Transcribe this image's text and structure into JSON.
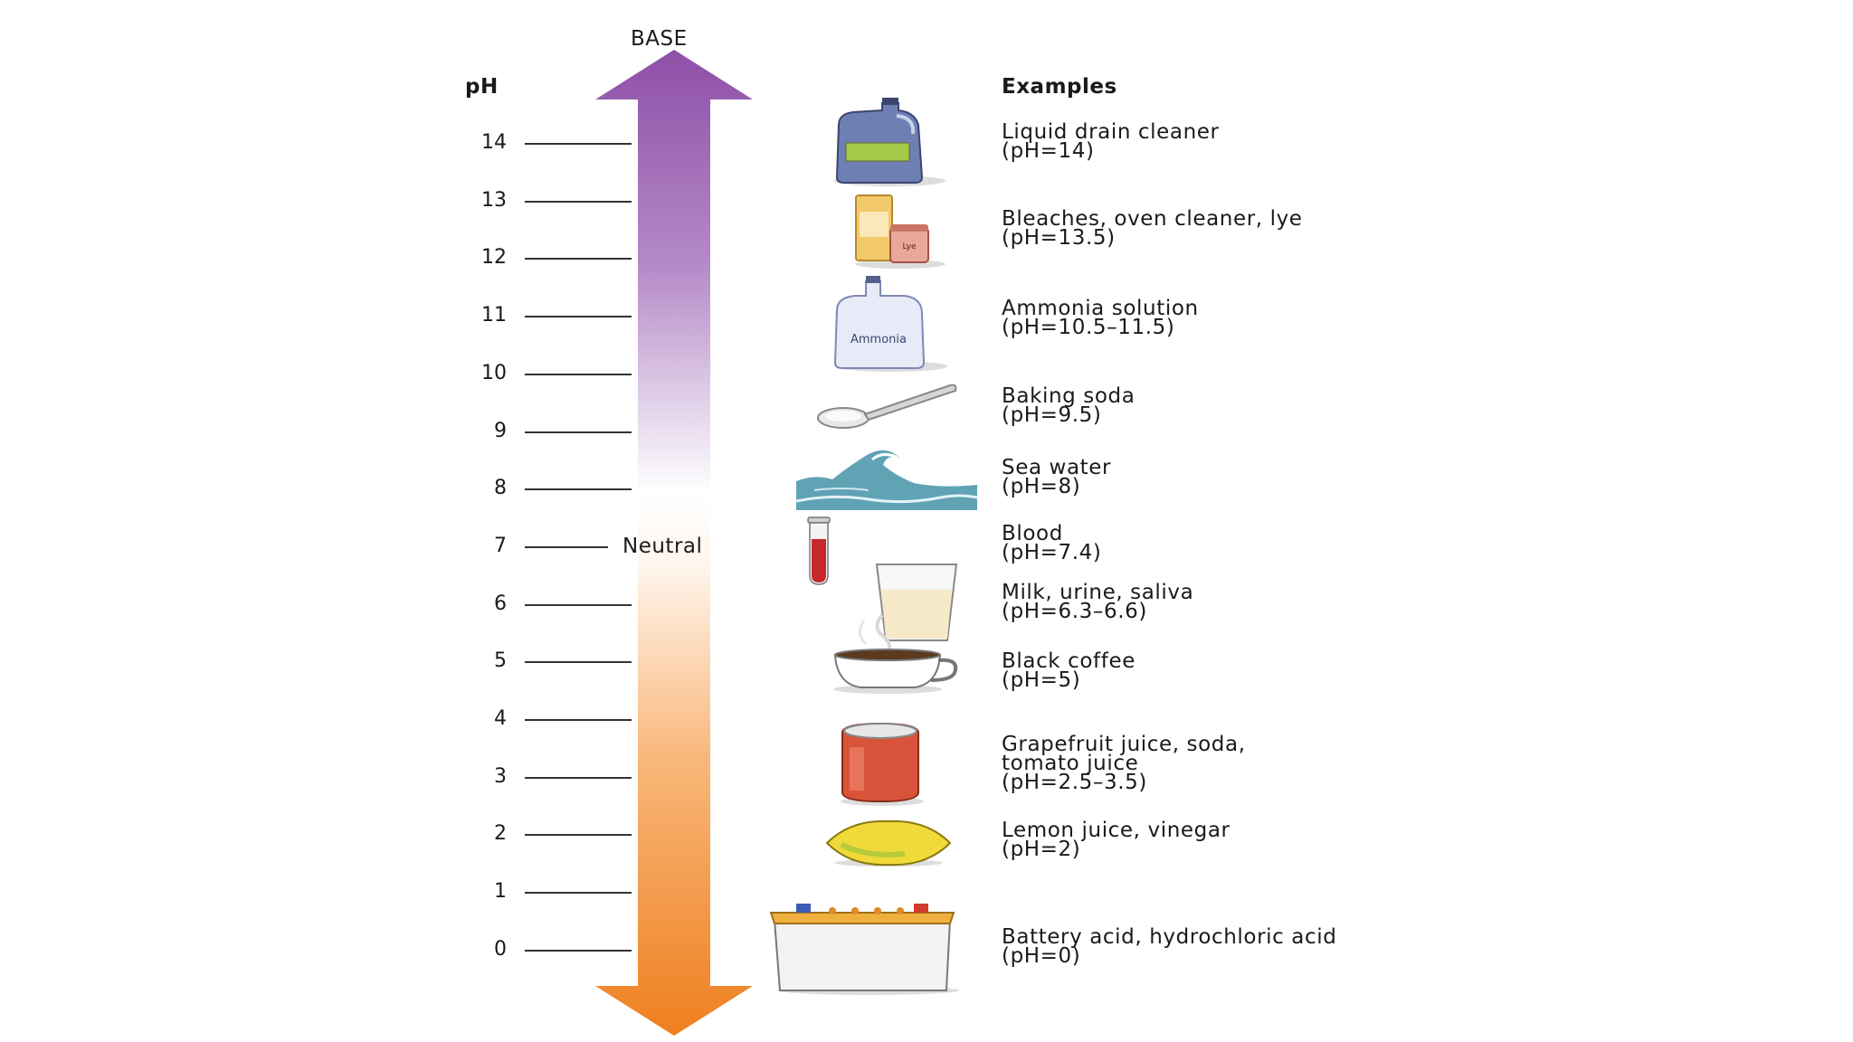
{
  "top_label": "BASE",
  "axis_label": "pH",
  "neutral_label": "Neutral",
  "examples_header": "Examples",
  "scale": {
    "min": 0,
    "max": 14,
    "ticks": [
      "14",
      "13",
      "12",
      "11",
      "10",
      "9",
      "8",
      "7",
      "6",
      "5",
      "4",
      "3",
      "2",
      "1",
      "0"
    ]
  },
  "gradient_colors": {
    "base": "#8e4fa7",
    "neutral": "#ffffff",
    "acid": "#ef7f1f"
  },
  "examples": [
    {
      "ph_value": 14,
      "name_lines": [
        "Liquid drain cleaner"
      ],
      "ph_text": "(pH=14)",
      "icon": "jug-icon"
    },
    {
      "ph_value": 13.5,
      "name_lines": [
        "Bleaches, oven cleaner, lye"
      ],
      "ph_text": "(pH=13.5)",
      "icon": "bleach-lye-containers-icon"
    },
    {
      "ph_value": 11,
      "name_lines": [
        "Ammonia solution"
      ],
      "ph_text": "(pH=10.5–11.5)",
      "icon": "ammonia-bottle-icon",
      "icon_text": "Ammonia"
    },
    {
      "ph_value": 9.5,
      "name_lines": [
        "Baking soda"
      ],
      "ph_text": "(pH=9.5)",
      "icon": "spoon-icon"
    },
    {
      "ph_value": 8,
      "name_lines": [
        "Sea water"
      ],
      "ph_text": "(pH=8)",
      "icon": "wave-icon"
    },
    {
      "ph_value": 7.4,
      "name_lines": [
        "Blood"
      ],
      "ph_text": "(pH=7.4)",
      "icon": "test-tube-icon"
    },
    {
      "ph_value": 6.45,
      "name_lines": [
        "Milk, urine, saliva"
      ],
      "ph_text": "(pH=6.3–6.6)",
      "icon": "glass-icon"
    },
    {
      "ph_value": 5,
      "name_lines": [
        "Black coffee"
      ],
      "ph_text": "(pH=5)",
      "icon": "coffee-cup-icon"
    },
    {
      "ph_value": 3,
      "name_lines": [
        "Grapefruit juice, soda,",
        "tomato juice"
      ],
      "ph_text": "(pH=2.5–3.5)",
      "icon": "soda-can-icon"
    },
    {
      "ph_value": 2,
      "name_lines": [
        "Lemon juice, vinegar"
      ],
      "ph_text": "(pH=2)",
      "icon": "lemon-icon"
    },
    {
      "ph_value": 0,
      "name_lines": [
        "Battery acid, hydrochloric acid"
      ],
      "ph_text": "(pH=0)",
      "icon": "battery-icon"
    }
  ],
  "icon_label_lye": "Lye"
}
